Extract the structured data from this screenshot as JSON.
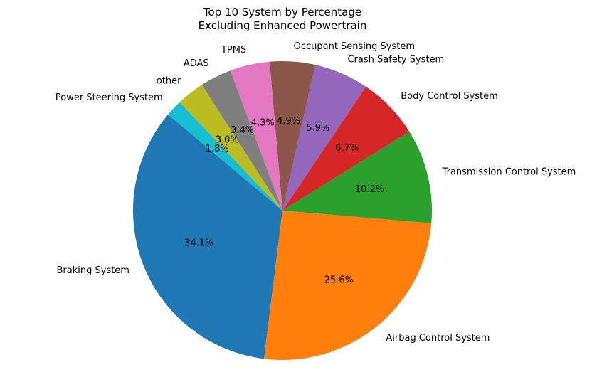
{
  "chart_data": {
    "type": "pie",
    "title": "Top 10 System by Percentage",
    "subtitle": "Excluding Enhanced Powertrain",
    "start_angle_deg": 140,
    "direction": "counterclockwise",
    "slices": [
      {
        "label": "Braking System",
        "value": 34.1,
        "pct_text": "34.1%",
        "color": "#1f77b4"
      },
      {
        "label": "Airbag Control System",
        "value": 25.6,
        "pct_text": "25.6%",
        "color": "#ff7f0e"
      },
      {
        "label": "Transmission Control System",
        "value": 10.2,
        "pct_text": "10.2%",
        "color": "#2ca02c"
      },
      {
        "label": "Body Control System",
        "value": 6.7,
        "pct_text": "6.7%",
        "color": "#d62728"
      },
      {
        "label": "Crash Safety System",
        "value": 5.9,
        "pct_text": "5.9%",
        "color": "#9467bd"
      },
      {
        "label": "Occupant Sensing System",
        "value": 4.9,
        "pct_text": "4.9%",
        "color": "#8c564b"
      },
      {
        "label": "TPMS",
        "value": 4.3,
        "pct_text": "4.3%",
        "color": "#e377c2"
      },
      {
        "label": "ADAS",
        "value": 3.4,
        "pct_text": "3.4%",
        "color": "#7f7f7f"
      },
      {
        "label": "other",
        "value": 3.0,
        "pct_text": "3.0%",
        "color": "#bcbd22"
      },
      {
        "label": "Power Steering System",
        "value": 1.8,
        "pct_text": "1.8%",
        "color": "#17becf"
      }
    ]
  }
}
